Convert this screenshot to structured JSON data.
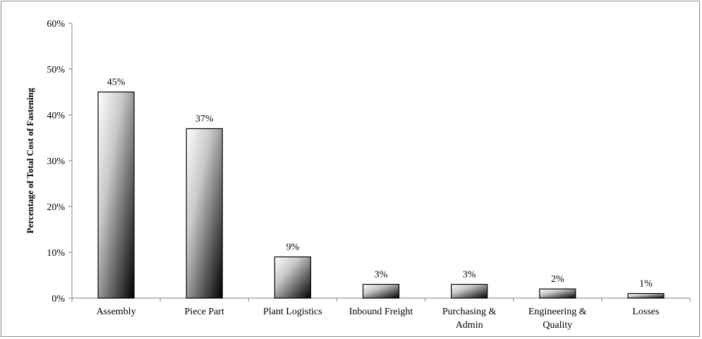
{
  "chart_data": {
    "type": "bar",
    "title": "",
    "xlabel": "",
    "ylabel": "Percentage of Total Cost of Fastening",
    "categories": [
      "Assembly",
      "Piece Part",
      "Plant Logistics",
      "Inbound Freight",
      "Purchasing & Admin",
      "Engineering & Quality",
      "Losses"
    ],
    "category_lines": [
      [
        "Assembly"
      ],
      [
        "Piece Part"
      ],
      [
        "Plant Logistics"
      ],
      [
        "Inbound Freight"
      ],
      [
        "Purchasing &",
        "Admin"
      ],
      [
        "Engineering &",
        "Quality"
      ],
      [
        "Losses"
      ]
    ],
    "values": [
      45,
      37,
      9,
      3,
      3,
      2,
      1
    ],
    "data_labels": [
      "45%",
      "37%",
      "9%",
      "3%",
      "3%",
      "2%",
      "1%"
    ],
    "ylim": [
      0,
      60
    ],
    "yticks": [
      0,
      10,
      20,
      30,
      40,
      50,
      60
    ],
    "ytick_labels": [
      "0%",
      "10%",
      "20%",
      "30%",
      "40%",
      "50%",
      "60%"
    ],
    "grid": false,
    "legend": "none",
    "colors": {
      "bar_light": "#ffffff",
      "bar_dark": "#000000",
      "axis": "#7f7f7f",
      "border": "#8c8c8c"
    }
  }
}
